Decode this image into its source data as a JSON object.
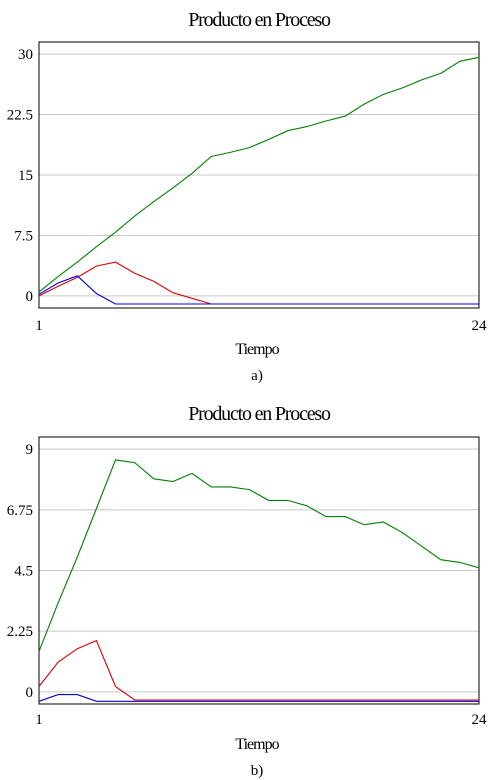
{
  "chart_data": [
    {
      "type": "line",
      "title": "Producto en Proceso",
      "xlabel": "Tiempo",
      "ylabel": "",
      "caption": "a)",
      "xlim": [
        1,
        24
      ],
      "ylim": [
        -1.5,
        31.5
      ],
      "x_ticks": [
        "1",
        "24"
      ],
      "y_ticks": [
        "0",
        "7.5",
        "15",
        "22.5",
        "30"
      ],
      "y_tick_values": [
        0,
        7.5,
        15,
        22.5,
        30
      ],
      "grid": true,
      "x": [
        1,
        2,
        3,
        4,
        5,
        6,
        7,
        8,
        9,
        10,
        11,
        12,
        13,
        14,
        15,
        16,
        17,
        18,
        19,
        20,
        21,
        22,
        23,
        24
      ],
      "series": [
        {
          "color": "#008000",
          "values": [
            0.5,
            2.4,
            4.2,
            6.1,
            7.9,
            9.9,
            11.7,
            13.4,
            15.2,
            17.3,
            17.8,
            18.4,
            19.4,
            20.5,
            21.0,
            21.7,
            22.3,
            23.8,
            25.0,
            25.8,
            26.8,
            27.6,
            29.1,
            29.6
          ]
        },
        {
          "color": "#e00000",
          "values": [
            0.0,
            1.2,
            2.3,
            3.7,
            4.2,
            2.8,
            1.8,
            0.4,
            -0.3,
            -1.0,
            -1.0,
            -1.0,
            -1.0,
            -1.0,
            -1.0,
            -1.0,
            -1.0,
            -1.0,
            -1.0,
            -1.0,
            -1.0,
            -1.0,
            -1.0,
            -1.0
          ]
        },
        {
          "color": "#0000e0",
          "values": [
            0.2,
            1.6,
            2.5,
            0.3,
            -1.0,
            -1.0,
            -1.0,
            -1.0,
            -1.0,
            -1.0,
            -1.0,
            -1.0,
            -1.0,
            -1.0,
            -1.0,
            -1.0,
            -1.0,
            -1.0,
            -1.0,
            -1.0,
            -1.0,
            -1.0,
            -1.0,
            -1.0
          ]
        }
      ]
    },
    {
      "type": "line",
      "title": "Producto en Proceso",
      "xlabel": "Tiempo",
      "ylabel": "",
      "caption": "b)",
      "xlim": [
        1,
        24
      ],
      "ylim": [
        -0.45,
        9.45
      ],
      "x_ticks": [
        "1",
        "24"
      ],
      "y_ticks": [
        "0",
        "2.25",
        "4.5",
        "6.75",
        "9"
      ],
      "y_tick_values": [
        0,
        2.25,
        4.5,
        6.75,
        9
      ],
      "grid": true,
      "x": [
        1,
        2,
        3,
        4,
        5,
        6,
        7,
        8,
        9,
        10,
        11,
        12,
        13,
        14,
        15,
        16,
        17,
        18,
        19,
        20,
        21,
        22,
        23,
        24
      ],
      "series": [
        {
          "color": "#008000",
          "values": [
            1.5,
            3.3,
            5.0,
            6.8,
            8.6,
            8.5,
            7.9,
            7.8,
            8.1,
            7.6,
            7.6,
            7.5,
            7.1,
            7.1,
            6.9,
            6.5,
            6.5,
            6.2,
            6.3,
            5.9,
            5.4,
            4.9,
            4.8,
            4.6
          ]
        },
        {
          "color": "#e00000",
          "values": [
            0.2,
            1.1,
            1.6,
            1.9,
            0.2,
            -0.3,
            -0.3,
            -0.3,
            -0.3,
            -0.3,
            -0.3,
            -0.3,
            -0.3,
            -0.3,
            -0.3,
            -0.3,
            -0.3,
            -0.3,
            -0.3,
            -0.3,
            -0.3,
            -0.3,
            -0.3,
            -0.3
          ]
        },
        {
          "color": "#0000e0",
          "values": [
            -0.35,
            -0.1,
            -0.1,
            -0.35,
            -0.35,
            -0.35,
            -0.35,
            -0.35,
            -0.35,
            -0.35,
            -0.35,
            -0.35,
            -0.35,
            -0.35,
            -0.35,
            -0.35,
            -0.35,
            -0.35,
            -0.35,
            -0.35,
            -0.35,
            -0.35,
            -0.35,
            -0.35
          ]
        }
      ]
    }
  ]
}
